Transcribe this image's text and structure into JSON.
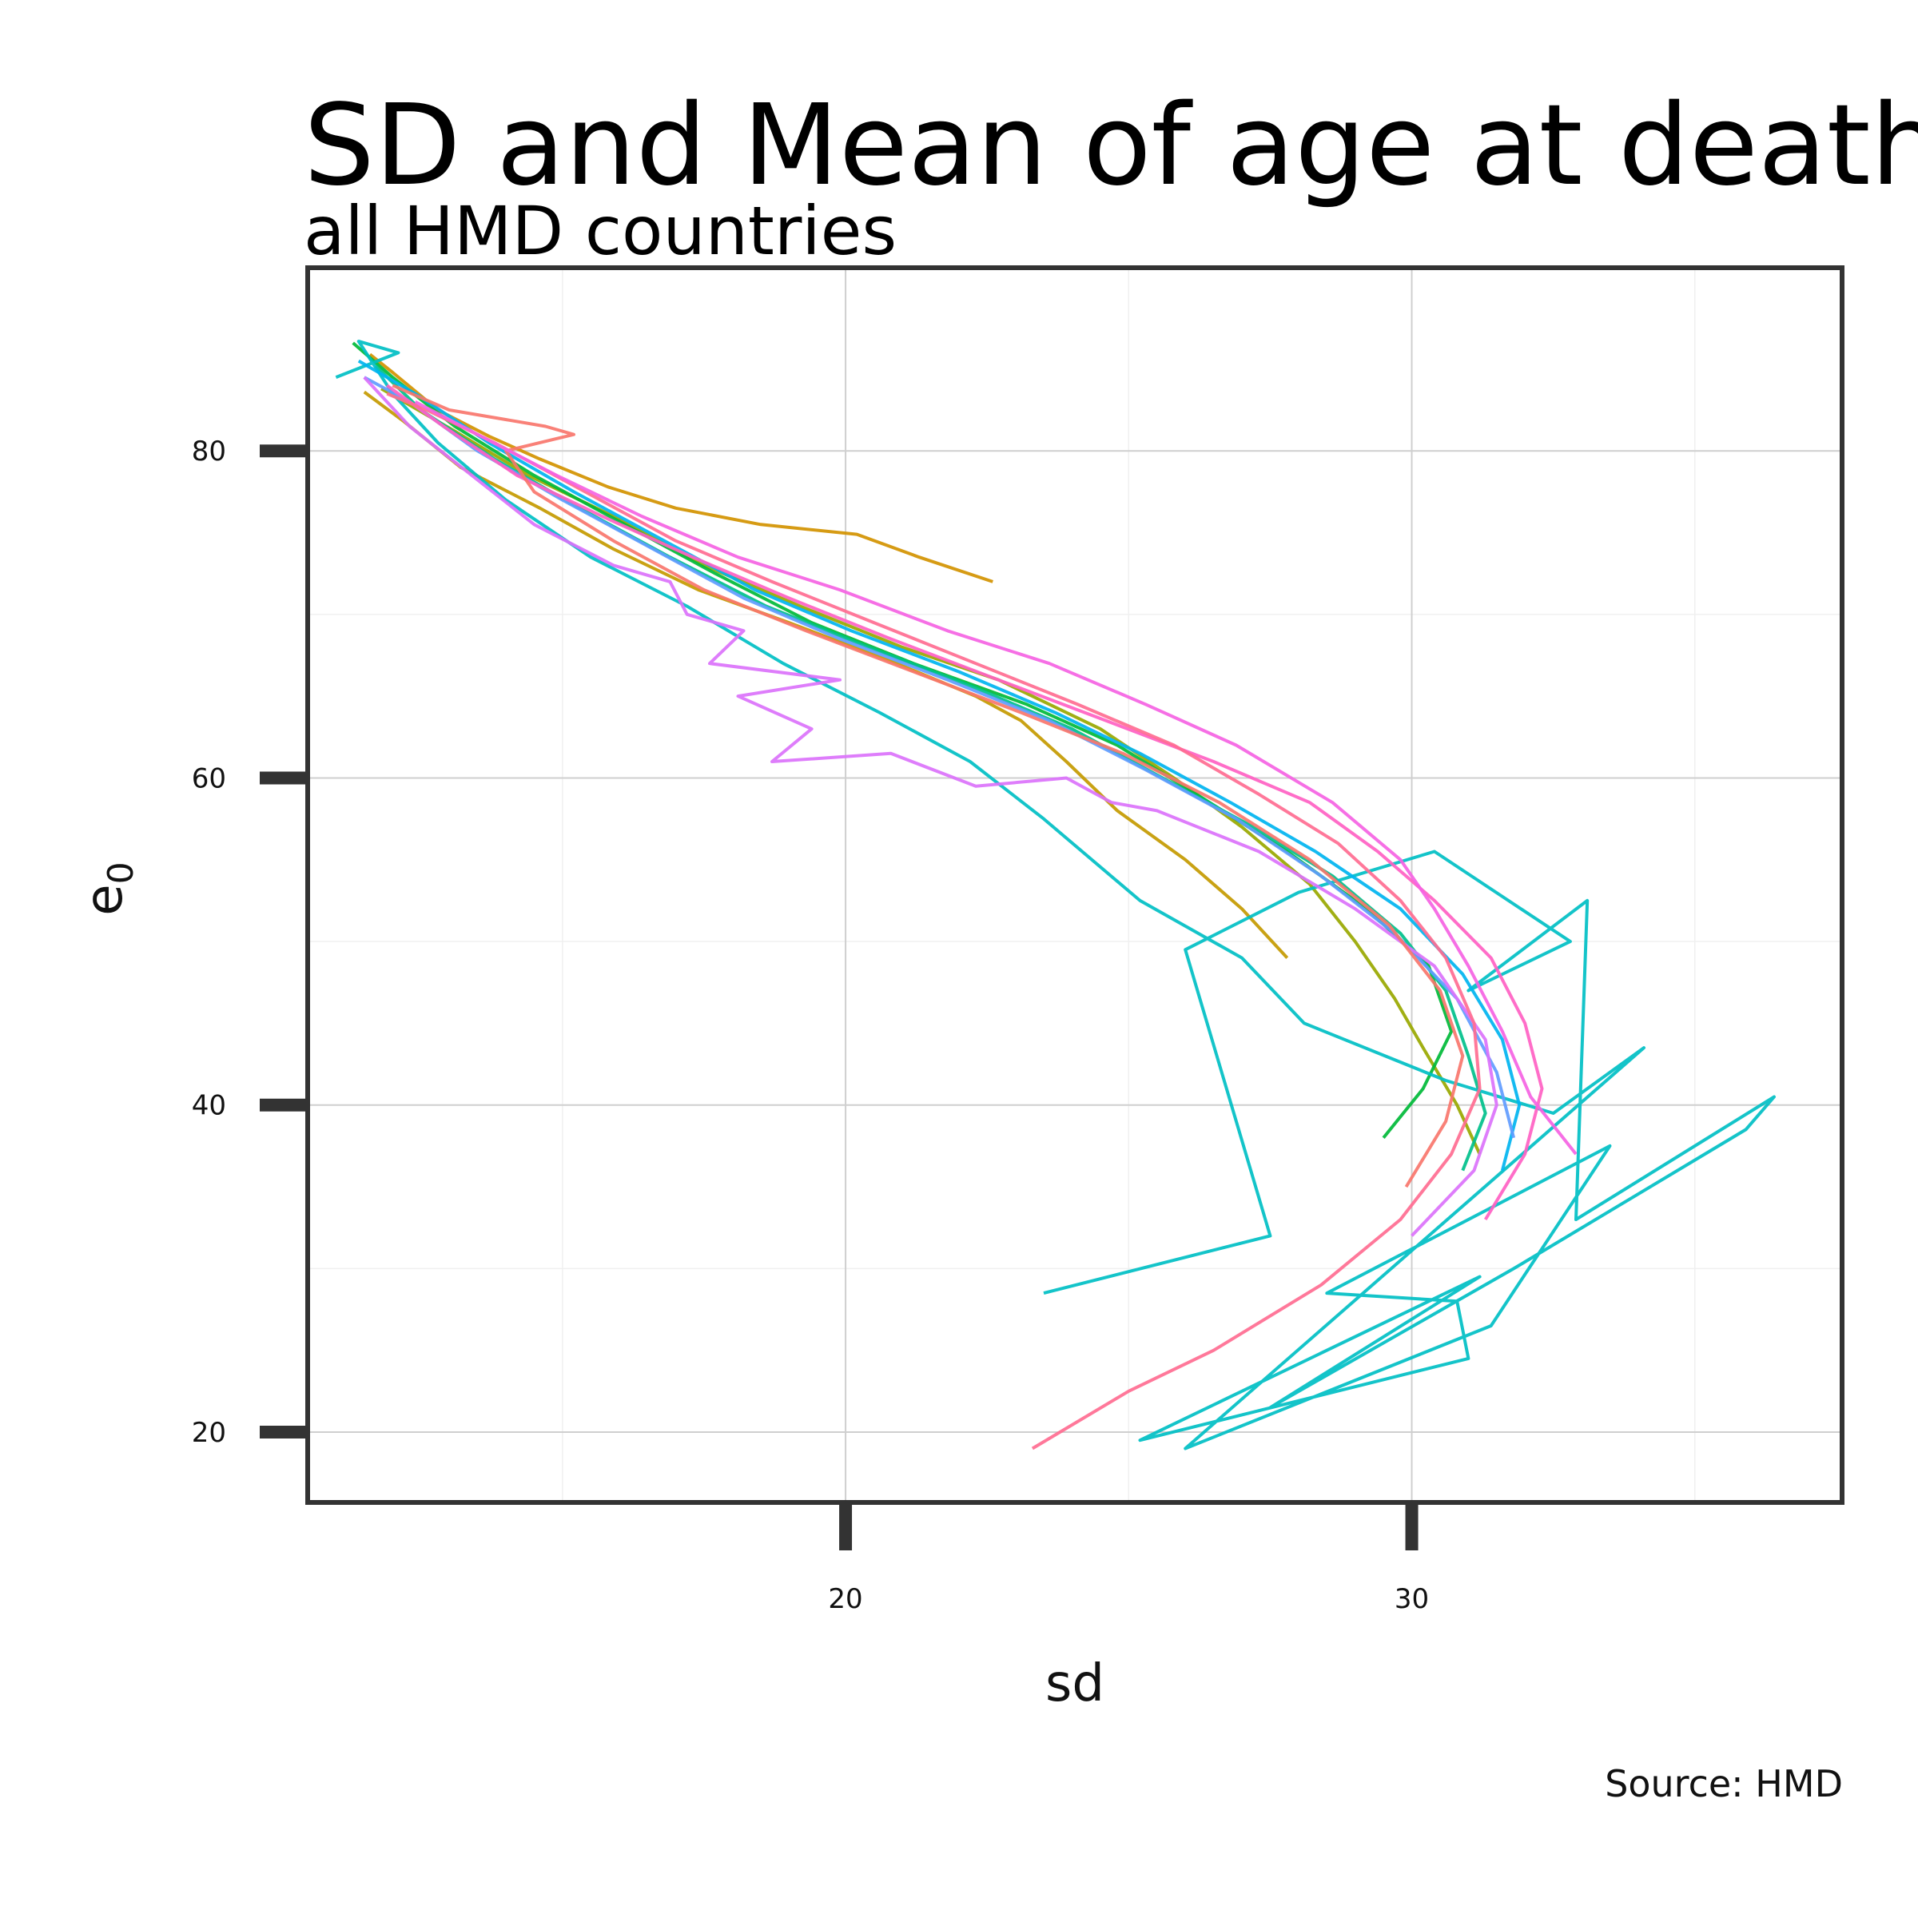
{
  "chart_data": {
    "type": "line",
    "title": "SD and Mean of age at death",
    "subtitle": "all HMD countries",
    "caption": "Source: HMD",
    "xlabel": "sd",
    "ylabel": "e",
    "ylabel_subscript": "0",
    "xlim": [
      10.5,
      37.6
    ],
    "ylim": [
      15.7,
      91.2
    ],
    "x_ticks": [
      20,
      30
    ],
    "y_ticks": [
      20,
      40,
      60,
      80
    ],
    "x_tick_labels": [
      "20",
      "30"
    ],
    "y_tick_labels": [
      "20",
      "40",
      "60",
      "80"
    ],
    "grid": true,
    "legend": "none",
    "series": [
      {
        "color": "#D39200",
        "points": [
          [
            22.6,
            72
          ],
          [
            21.3,
            73.5
          ],
          [
            20.2,
            74.9
          ],
          [
            18.5,
            75.5
          ],
          [
            17.0,
            76.5
          ],
          [
            15.8,
            77.8
          ],
          [
            14.6,
            79.5
          ],
          [
            13.7,
            80.9
          ],
          [
            12.8,
            82.5
          ],
          [
            12.0,
            84.8
          ],
          [
            11.6,
            85.9
          ]
        ]
      },
      {
        "color": "#C49A00",
        "points": [
          [
            27.8,
            49
          ],
          [
            27.0,
            52
          ],
          [
            26.0,
            55
          ],
          [
            24.8,
            58
          ],
          [
            23.9,
            61
          ],
          [
            23.1,
            63.5
          ],
          [
            22.3,
            65
          ],
          [
            20.9,
            67
          ],
          [
            19.0,
            69.5
          ],
          [
            17.4,
            71.5
          ],
          [
            15.9,
            74
          ],
          [
            14.6,
            76.5
          ],
          [
            13.2,
            79
          ],
          [
            12.2,
            81.8
          ],
          [
            11.5,
            83.6
          ]
        ]
      },
      {
        "color": "#99A800",
        "points": [
          [
            31.2,
            37
          ],
          [
            30.8,
            40
          ],
          [
            30.2,
            43.5
          ],
          [
            29.7,
            46.5
          ],
          [
            29.0,
            50
          ],
          [
            28.2,
            53.5
          ],
          [
            27.0,
            57
          ],
          [
            25.8,
            60
          ],
          [
            24.5,
            63
          ],
          [
            22.7,
            66
          ],
          [
            21.0,
            68
          ],
          [
            19.2,
            70.5
          ],
          [
            17.5,
            73
          ],
          [
            15.9,
            76
          ],
          [
            14.4,
            78.5
          ],
          [
            13.1,
            81.2
          ],
          [
            11.8,
            83.8
          ]
        ]
      },
      {
        "color": "#00BA38",
        "points": [
          [
            29.5,
            38
          ],
          [
            30.2,
            41
          ],
          [
            30.7,
            44.5
          ],
          [
            30.3,
            48.5
          ],
          [
            29.2,
            52
          ],
          [
            27.8,
            55.5
          ],
          [
            26.2,
            59
          ],
          [
            24.8,
            62
          ],
          [
            23.2,
            64.5
          ],
          [
            21.2,
            67
          ],
          [
            19.4,
            69.5
          ],
          [
            17.7,
            72.5
          ],
          [
            16.1,
            75.5
          ],
          [
            14.5,
            78.5
          ],
          [
            13.1,
            81.5
          ],
          [
            12.0,
            84.5
          ],
          [
            11.3,
            86.6
          ]
        ]
      },
      {
        "color": "#00C08B",
        "points": [
          [
            30.9,
            36
          ],
          [
            31.3,
            39.5
          ],
          [
            31.0,
            43
          ],
          [
            30.6,
            47
          ],
          [
            29.8,
            50.5
          ],
          [
            28.6,
            54
          ],
          [
            27.2,
            57
          ],
          [
            25.6,
            60
          ],
          [
            24.0,
            63
          ],
          [
            22.3,
            65.5
          ],
          [
            20.4,
            68
          ],
          [
            18.6,
            70.5
          ],
          [
            16.9,
            73.5
          ],
          [
            15.3,
            76.5
          ],
          [
            13.8,
            79.5
          ],
          [
            12.5,
            82.5
          ],
          [
            11.7,
            85.2
          ]
        ]
      },
      {
        "color": "#00BFC4",
        "points": [
          [
            23.5,
            28.5
          ],
          [
            27.5,
            32
          ],
          [
            26.0,
            49.5
          ],
          [
            28.0,
            53
          ],
          [
            30.4,
            55.5
          ],
          [
            32.8,
            50
          ],
          [
            31.0,
            47
          ],
          [
            33.1,
            52.5
          ],
          [
            32.9,
            33
          ],
          [
            36.4,
            40.5
          ],
          [
            35.9,
            38.5
          ],
          [
            31.8,
            30
          ],
          [
            27.5,
            21.5
          ],
          [
            31.2,
            29.5
          ],
          [
            25.2,
            19.5
          ],
          [
            31.0,
            24.5
          ],
          [
            30.8,
            28
          ],
          [
            28.5,
            28.5
          ],
          [
            33.5,
            37.5
          ],
          [
            31.4,
            26.5
          ],
          [
            26.0,
            19
          ],
          [
            34.1,
            43.5
          ],
          [
            32.5,
            39.5
          ],
          [
            30.6,
            41.5
          ],
          [
            28.1,
            45
          ],
          [
            27.0,
            49
          ],
          [
            25.2,
            52.5
          ],
          [
            23.5,
            57.5
          ],
          [
            22.2,
            61
          ],
          [
            20.6,
            64
          ],
          [
            18.9,
            67
          ],
          [
            17.2,
            70.5
          ],
          [
            15.5,
            73.5
          ],
          [
            14.0,
            77
          ],
          [
            12.8,
            80.5
          ],
          [
            12.0,
            83.5
          ],
          [
            11.4,
            86.7
          ],
          [
            12.1,
            86.0
          ],
          [
            11.0,
            84.5
          ]
        ]
      },
      {
        "color": "#00B4F0",
        "points": [
          [
            31.6,
            36
          ],
          [
            31.9,
            40
          ],
          [
            31.6,
            44
          ],
          [
            30.9,
            48
          ],
          [
            29.8,
            52
          ],
          [
            28.3,
            55.5
          ],
          [
            26.8,
            58.5
          ],
          [
            25.2,
            61.5
          ],
          [
            23.7,
            64
          ],
          [
            22.0,
            66.5
          ],
          [
            20.1,
            69
          ],
          [
            18.4,
            71.5
          ],
          [
            16.8,
            74.5
          ],
          [
            15.2,
            77.5
          ],
          [
            13.7,
            80.5
          ],
          [
            12.4,
            83.5
          ],
          [
            11.4,
            85.5
          ]
        ]
      },
      {
        "color": "#619CFF",
        "points": [
          [
            31.8,
            38
          ],
          [
            31.5,
            42
          ],
          [
            30.8,
            46.5
          ],
          [
            29.7,
            50.5
          ],
          [
            28.4,
            54
          ],
          [
            26.9,
            57.5
          ],
          [
            25.3,
            60.5
          ],
          [
            23.6,
            63.5
          ],
          [
            21.8,
            66
          ],
          [
            19.9,
            68.5
          ],
          [
            18.2,
            71
          ],
          [
            16.6,
            74
          ],
          [
            15.0,
            77
          ],
          [
            13.5,
            80
          ],
          [
            12.3,
            83
          ],
          [
            11.5,
            84.5
          ]
        ]
      },
      {
        "color": "#DB72FB",
        "points": [
          [
            30.0,
            32
          ],
          [
            31.1,
            36
          ],
          [
            31.5,
            40
          ],
          [
            31.3,
            44
          ],
          [
            30.4,
            48.5
          ],
          [
            29.0,
            52
          ],
          [
            27.3,
            55.5
          ],
          [
            25.5,
            58
          ],
          [
            24.7,
            58.5
          ],
          [
            23.9,
            60
          ],
          [
            22.3,
            59.5
          ],
          [
            20.8,
            61.5
          ],
          [
            18.7,
            61
          ],
          [
            19.4,
            63
          ],
          [
            18.1,
            65
          ],
          [
            19.9,
            66
          ],
          [
            17.6,
            67
          ],
          [
            18.2,
            69
          ],
          [
            17.2,
            70
          ],
          [
            16.9,
            72
          ],
          [
            15.9,
            73
          ],
          [
            14.5,
            75.5
          ],
          [
            13.4,
            78.5
          ],
          [
            12.3,
            81.5
          ],
          [
            11.5,
            84.5
          ]
        ]
      },
      {
        "color": "#FF61C3",
        "points": [
          [
            31.3,
            33
          ],
          [
            32.0,
            37
          ],
          [
            32.3,
            41
          ],
          [
            32.0,
            45
          ],
          [
            31.4,
            49
          ],
          [
            30.4,
            52.5
          ],
          [
            29.4,
            55.5
          ],
          [
            28.2,
            58.5
          ],
          [
            26.5,
            61
          ],
          [
            24.6,
            63.5
          ],
          [
            22.7,
            66
          ],
          [
            20.8,
            68.5
          ],
          [
            19.0,
            71
          ],
          [
            17.3,
            73.5
          ],
          [
            15.7,
            76
          ],
          [
            14.2,
            78.5
          ],
          [
            12.9,
            81.5
          ],
          [
            11.9,
            84
          ]
        ]
      },
      {
        "color": "#F8766D",
        "points": [
          [
            29.9,
            35
          ],
          [
            30.6,
            39
          ],
          [
            30.9,
            43
          ],
          [
            30.5,
            47
          ],
          [
            29.6,
            51
          ],
          [
            28.2,
            55
          ],
          [
            26.6,
            58.5
          ],
          [
            24.9,
            61.5
          ],
          [
            23.1,
            64
          ],
          [
            21.2,
            66.5
          ],
          [
            19.3,
            69
          ],
          [
            17.5,
            71.5
          ],
          [
            15.9,
            74.5
          ],
          [
            14.5,
            77.5
          ],
          [
            14.0,
            80
          ],
          [
            15.2,
            81
          ],
          [
            14.7,
            81.5
          ],
          [
            13.0,
            82.5
          ],
          [
            12.0,
            84
          ]
        ]
      },
      {
        "color": "#FF6C91",
        "points": [
          [
            23.3,
            19
          ],
          [
            25.0,
            22.5
          ],
          [
            26.5,
            25
          ],
          [
            28.4,
            29
          ],
          [
            29.8,
            33
          ],
          [
            30.7,
            37
          ],
          [
            31.2,
            41
          ],
          [
            31.1,
            45
          ],
          [
            30.6,
            49
          ],
          [
            29.8,
            52.5
          ],
          [
            28.7,
            56
          ],
          [
            27.3,
            59
          ],
          [
            25.8,
            62
          ],
          [
            24.1,
            64.5
          ],
          [
            22.3,
            67
          ],
          [
            20.5,
            69.5
          ],
          [
            18.7,
            72
          ],
          [
            17.0,
            74.5
          ],
          [
            15.4,
            77.5
          ],
          [
            13.8,
            80.5
          ],
          [
            12.6,
            82.5
          ],
          [
            11.9,
            83.5
          ]
        ]
      },
      {
        "color": "#F563E3",
        "points": [
          [
            32.9,
            37
          ],
          [
            32.1,
            40.5
          ],
          [
            31.6,
            44.5
          ],
          [
            31.0,
            48.5
          ],
          [
            30.4,
            52
          ],
          [
            29.8,
            55
          ],
          [
            28.6,
            58.5
          ],
          [
            26.9,
            62
          ],
          [
            25.3,
            64.5
          ],
          [
            23.6,
            67
          ],
          [
            21.8,
            69
          ],
          [
            19.9,
            71.5
          ],
          [
            18.1,
            73.5
          ],
          [
            16.4,
            76
          ],
          [
            14.9,
            78.5
          ],
          [
            13.5,
            81
          ],
          [
            12.4,
            83
          ]
        ]
      }
    ]
  }
}
